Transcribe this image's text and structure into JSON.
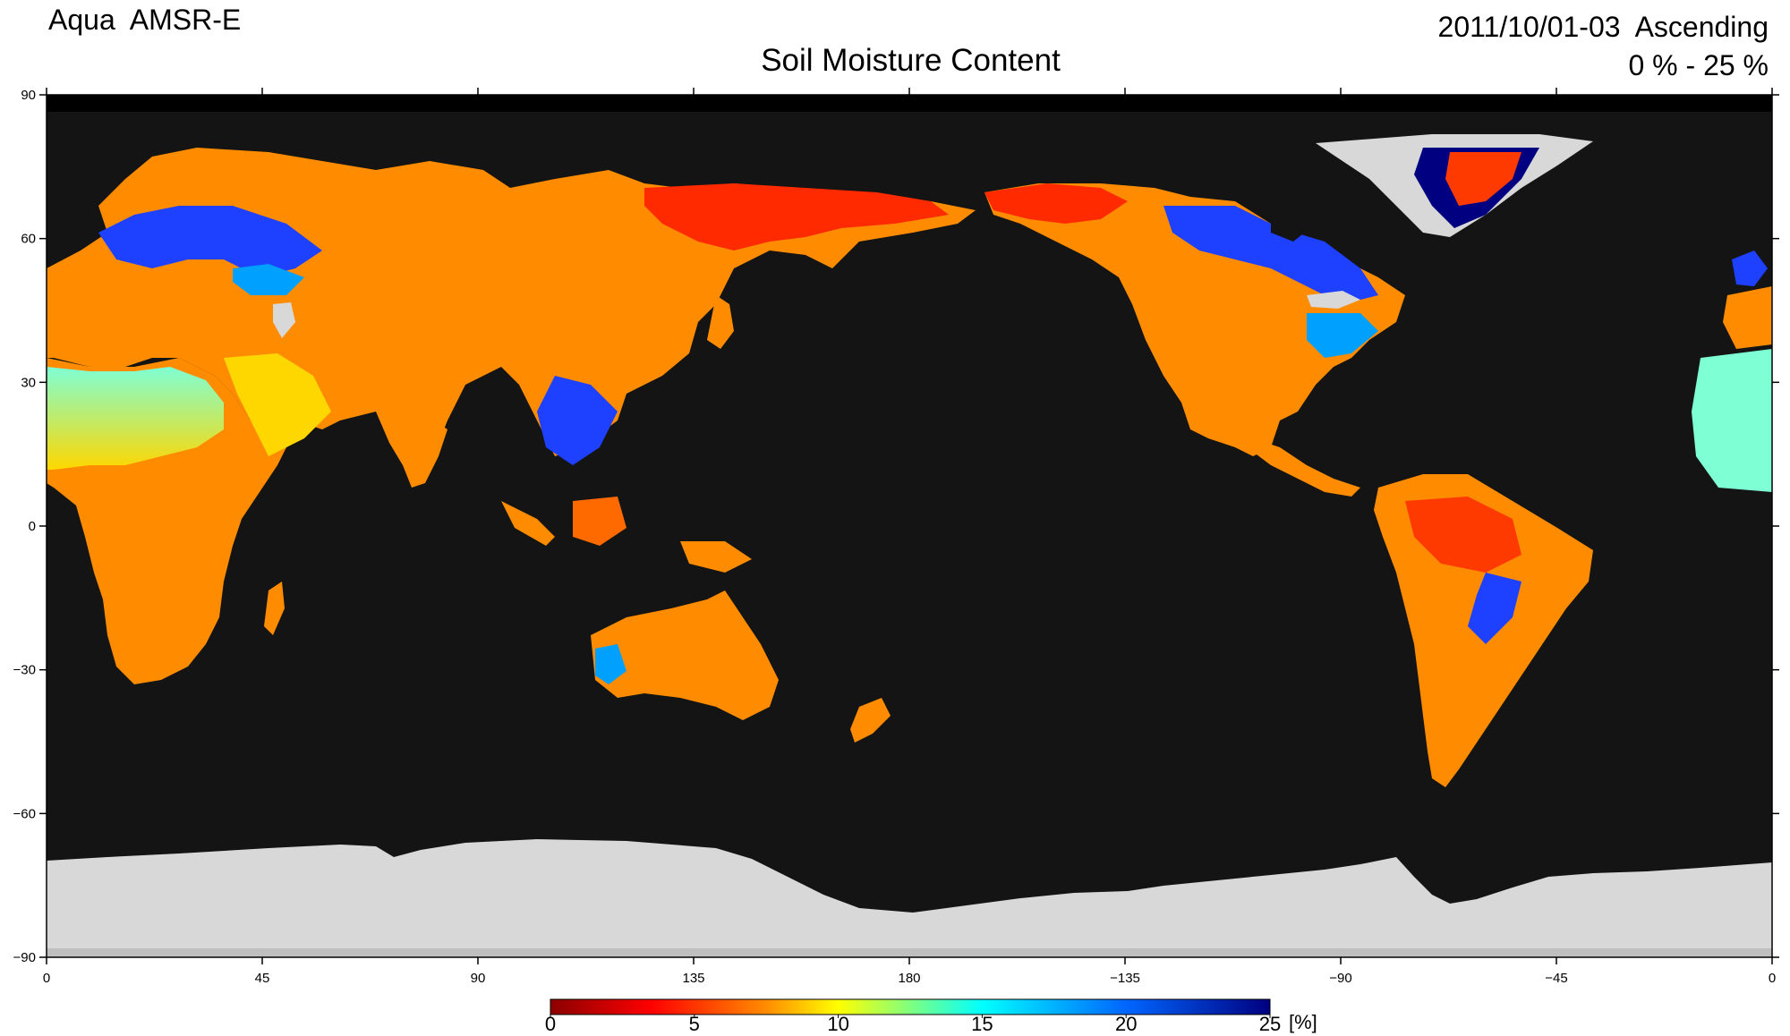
{
  "header": {
    "satellite": "Aqua  AMSR-E",
    "title": "Soil Moisture Content",
    "date": "2011/10/01-03  Ascending",
    "range": "0 % - 25 %"
  },
  "axes": {
    "lon_labels": [
      "0",
      "45",
      "90",
      "135",
      "180",
      "−135",
      "−90",
      "−45",
      "0"
    ],
    "lat_labels": [
      "90",
      "60",
      "30",
      "0",
      "−30",
      "−60",
      "−90"
    ]
  },
  "colorbar": {
    "labels": [
      "0",
      "5",
      "10",
      "15",
      "20",
      "25"
    ],
    "unit": "[%]",
    "min": 0,
    "max": 25,
    "colors": [
      "#8b0000",
      "#ff0000",
      "#ff8c00",
      "#ffff00",
      "#00ffff",
      "#0066ff",
      "#000080"
    ]
  },
  "map_colors": {
    "ocean": "#141414",
    "ice": "#d8d8d8",
    "no_data": "#000000"
  }
}
